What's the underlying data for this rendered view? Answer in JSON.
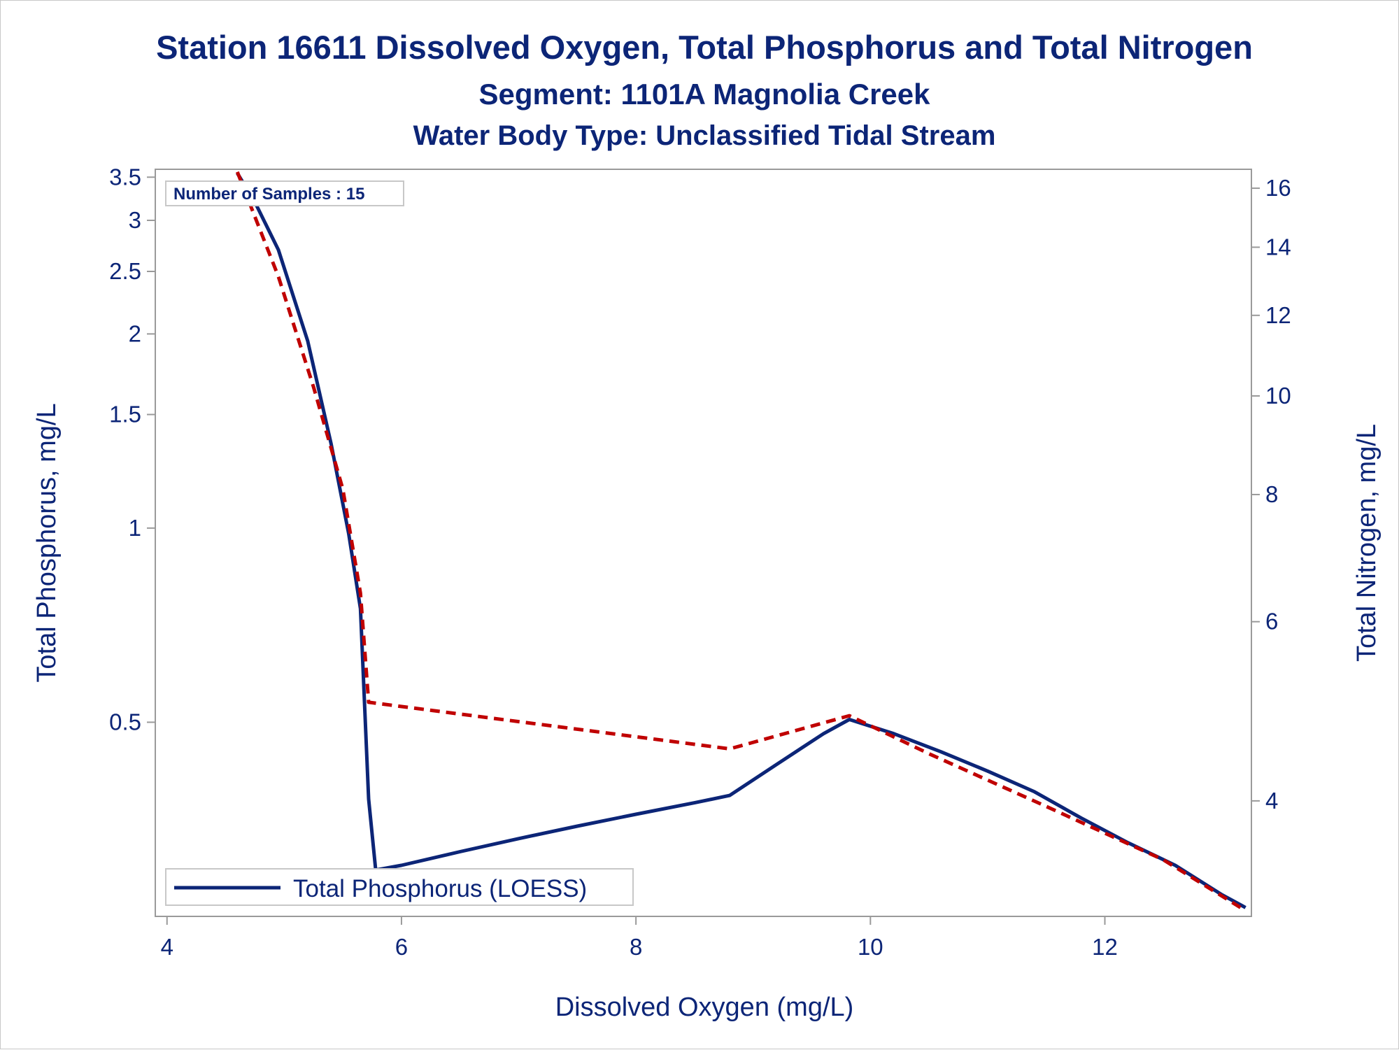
{
  "titles": {
    "line1": "Station 16611  Dissolved Oxygen, Total Phosphorus and Total Nitrogen",
    "line2": "Segment: 1101A  Magnolia Creek",
    "line3": "Water Body Type: Unclassified Tidal Stream"
  },
  "annotation": "Number of Samples : 15",
  "legend": {
    "label": "Total Phosphorus (LOESS)"
  },
  "colors": {
    "text": "#0c2577",
    "phosphorus": "#0c2577",
    "nitrogen": "#c00000",
    "axis": "#9a9a9a"
  },
  "chart_data": {
    "type": "line",
    "xlabel": "Dissolved Oxygen (mg/L)",
    "ylabel": "Total Phosphorus, mg/L",
    "y2label": "Total Nitrogen, mg/L",
    "xlim": [
      3.9,
      13.25
    ],
    "ylim": [
      0.25,
      3.6
    ],
    "y2lim": [
      3.08,
      16.7
    ],
    "yscale": "log",
    "y2scale": "log",
    "xticks": [
      4,
      6,
      8,
      10,
      12
    ],
    "yticks": [
      0.5,
      1,
      1.5,
      2,
      2.5,
      3,
      3.5
    ],
    "y2ticks": [
      4,
      6,
      8,
      10,
      12,
      14,
      16
    ],
    "grid": false,
    "legend_position": "bottom-left",
    "series": [
      {
        "name": "Total Phosphorus (LOESS)",
        "axis": "y",
        "style": "solid",
        "x": [
          4.6,
          4.75,
          4.95,
          5.2,
          5.4,
          5.55,
          5.65,
          5.72,
          5.78,
          6.0,
          6.5,
          7.0,
          7.5,
          8.0,
          8.5,
          8.8,
          9.2,
          9.6,
          9.82,
          10.2,
          10.6,
          11.0,
          11.4,
          11.8,
          12.2,
          12.6,
          13.0,
          13.2
        ],
        "y": [
          3.55,
          3.2,
          2.7,
          1.95,
          1.35,
          0.98,
          0.75,
          0.38,
          0.295,
          0.3,
          0.315,
          0.33,
          0.345,
          0.36,
          0.375,
          0.385,
          0.43,
          0.48,
          0.505,
          0.48,
          0.45,
          0.42,
          0.39,
          0.355,
          0.325,
          0.3,
          0.27,
          0.258
        ]
      },
      {
        "name": "",
        "axis": "y2",
        "style": "dashed",
        "x": [
          4.6,
          4.95,
          5.25,
          5.5,
          5.65,
          5.72,
          8.8,
          9.82,
          10.5,
          11.5,
          12.5,
          13.2
        ],
        "y": [
          16.6,
          13.1,
          10.2,
          8.1,
          6.4,
          5.0,
          4.5,
          4.85,
          4.45,
          3.95,
          3.5,
          3.12
        ]
      }
    ]
  }
}
